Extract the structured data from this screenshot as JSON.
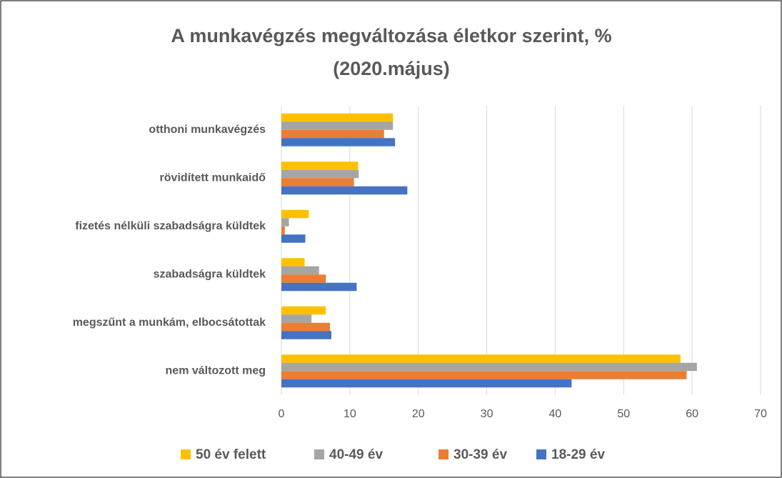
{
  "chart_data": {
    "type": "hbar",
    "title": "A munkavégzés megváltozása életkor szerint, %",
    "subtitle": "(2020.május)",
    "categories": [
      "otthoni munkavégzés",
      "rövidített munkaidő",
      "fizetés nélküli szabadságra küldtek",
      "szabadságra küldtek",
      "megszűnt a munkám, elbocsátottak",
      "nem változott meg"
    ],
    "series": [
      {
        "name": "50 év felett",
        "color": "#ffc000",
        "values": [
          16.3,
          11.2,
          4.0,
          3.4,
          6.5,
          58.3
        ]
      },
      {
        "name": "40-49 év",
        "color": "#a5a5a5",
        "values": [
          16.3,
          11.3,
          1.1,
          5.5,
          4.4,
          60.7
        ]
      },
      {
        "name": "30-39 év",
        "color": "#ed7d31",
        "values": [
          15.0,
          10.6,
          0.5,
          6.5,
          7.1,
          59.2
        ]
      },
      {
        "name": "18-29 év",
        "color": "#4472c4",
        "values": [
          16.6,
          18.4,
          3.5,
          11.0,
          7.3,
          42.4
        ]
      }
    ],
    "xlim": [
      0,
      70
    ],
    "xticks": [
      0,
      10,
      20,
      30,
      40,
      50,
      60,
      70
    ],
    "grid": true,
    "legend": "bottom"
  }
}
